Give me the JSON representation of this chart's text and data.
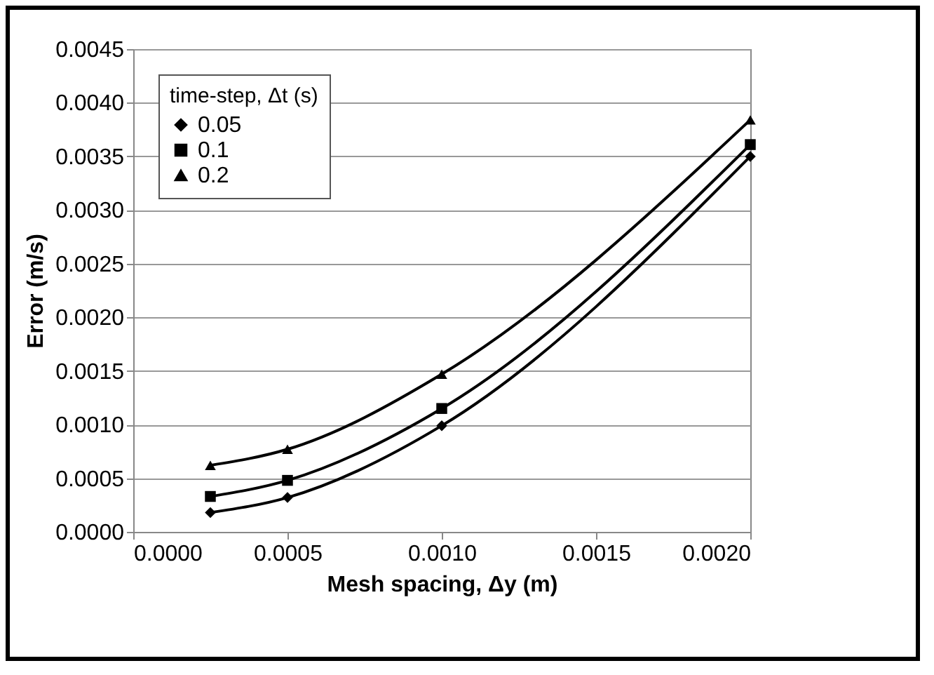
{
  "chart_data": {
    "type": "line",
    "xlabel": "Mesh spacing, Δy (m)",
    "ylabel": "Error (m/s)",
    "legend_title": "time-step, Δt (s)",
    "x": [
      0.00025,
      0.0005,
      0.001,
      0.002
    ],
    "series": [
      {
        "name": "0.05",
        "color": "#000000",
        "marker": "diamond",
        "values": [
          0.00018,
          0.00032,
          0.00099,
          0.0035
        ]
      },
      {
        "name": "0.1",
        "color": "#000000",
        "marker": "square",
        "values": [
          0.00033,
          0.00048,
          0.00115,
          0.00361
        ]
      },
      {
        "name": "0.2",
        "color": "#000000",
        "marker": "triangle",
        "values": [
          0.00062,
          0.00077,
          0.00147,
          0.00384
        ]
      }
    ],
    "xlim": [
      0,
      0.002
    ],
    "xticks": [
      {
        "value": 0,
        "label": "0.0000"
      },
      0.0005,
      {
        "value": 0.001,
        "label": "0.0010"
      },
      0.0015,
      {
        "value": 0.002,
        "label": "0.0020"
      }
    ],
    "ylim": [
      0,
      0.0045
    ],
    "yticks": [
      {
        "value": 0,
        "label": "0.0000"
      },
      0.0005,
      {
        "value": 0.001,
        "label": "0.0010"
      },
      0.0015,
      {
        "value": 0.002,
        "label": "0.0020"
      },
      0.0025,
      {
        "value": 0.003,
        "label": "0.0030"
      },
      0.0035,
      {
        "value": 0.004,
        "label": "0.0040"
      },
      0.0045
    ],
    "grid": "y",
    "legend": "top left",
    "line_style": "solid"
  }
}
